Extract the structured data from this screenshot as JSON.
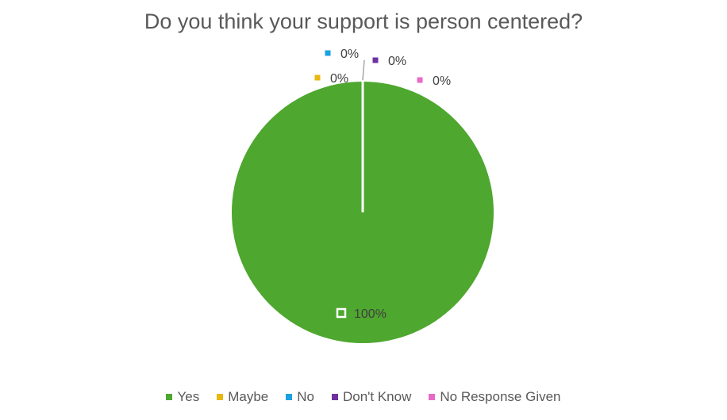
{
  "chart_data": {
    "type": "pie",
    "title": "Do you think your support is person centered?",
    "categories": [
      "Yes",
      "Maybe",
      "No",
      "Don't Know",
      "No Response Given"
    ],
    "values": [
      100,
      0,
      0,
      0,
      0
    ],
    "data_labels": [
      "100%",
      "0%",
      "0%",
      "0%",
      "0%"
    ],
    "colors": [
      "#4EA72E",
      "#E8B710",
      "#1BA1E2",
      "#7030A0",
      "#E86AC8"
    ],
    "legend_position": "bottom"
  }
}
